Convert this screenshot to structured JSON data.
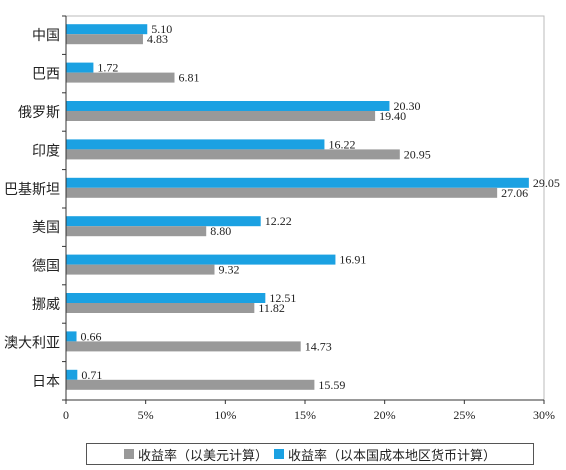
{
  "chart_data": {
    "type": "bar",
    "orientation": "horizontal",
    "categories": [
      "中国",
      "巴西",
      "俄罗斯",
      "印度",
      "巴基斯坦",
      "美国",
      "德国",
      "挪威",
      "澳大利亚",
      "日本"
    ],
    "series": [
      {
        "name": "收益率（以本国成本地区货币计算）",
        "color": "#1ba1e2",
        "values": [
          5.1,
          1.72,
          20.3,
          16.22,
          29.05,
          12.22,
          16.91,
          12.51,
          0.66,
          0.71
        ],
        "labels": [
          "5.10",
          "1.72",
          "20.30",
          "16.22",
          "29.05",
          "12.22",
          "16.91",
          "12.51",
          "0.66",
          "0.71"
        ]
      },
      {
        "name": "收益率（以美元计算）",
        "color": "#999999",
        "values": [
          4.83,
          6.81,
          19.4,
          20.95,
          27.06,
          8.8,
          9.32,
          11.82,
          14.73,
          15.59
        ],
        "labels": [
          "4.83",
          "6.81",
          "19.40",
          "20.95",
          "27.06",
          "8.80",
          "9.32",
          "11.82",
          "14.73",
          "15.59"
        ]
      }
    ],
    "xlim": [
      0,
      30
    ],
    "xticks": [
      "0",
      "5%",
      "10%",
      "15%",
      "20%",
      "25%",
      "30%"
    ],
    "legend": {
      "position": "bottom",
      "items": [
        {
          "label": "收益率（以美元计算）",
          "color": "#999999"
        },
        {
          "label": "收益率（以本国成本地区货币计算）",
          "color": "#1ba1e2"
        }
      ]
    }
  }
}
